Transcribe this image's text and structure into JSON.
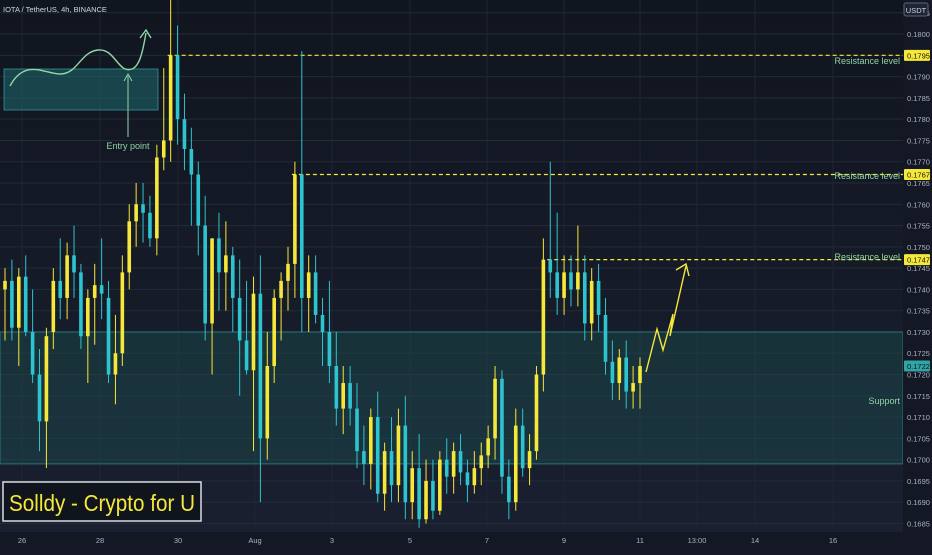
{
  "symbol_title": "IOTA / TetherUS, 4h, BINANCE",
  "currency": "USDT",
  "watermark": "Solldy - Crypto for U",
  "annotations": {
    "entry_point": "Entry point",
    "support": "Support",
    "resistance_label": "Resistance level"
  },
  "colors": {
    "background": "#141824",
    "bull": "#f5e83a",
    "bear": "#2ec4cf",
    "resistance_line": "#f5e83a",
    "support_zone": "#1d5b5a",
    "entry_box": "#1f6a70",
    "text": "#cfd8dc",
    "label_green": "#8fd6a8",
    "projection": "#f5e83a"
  },
  "chart_data": {
    "type": "candlestick",
    "price_axis": {
      "min": 0.1683,
      "max": 0.1808,
      "ticks": [
        "0.1685",
        "0.1690",
        "0.1695",
        "0.1700",
        "0.1705",
        "0.1710",
        "0.1715",
        "0.1720",
        "0.1725",
        "0.1730",
        "0.1735",
        "0.1740",
        "0.1745",
        "0.1750",
        "0.1755",
        "0.1760",
        "0.1765",
        "0.1770",
        "0.1775",
        "0.1780",
        "0.1785",
        "0.1790",
        "0.1795",
        "0.1800",
        "0.1805"
      ],
      "highlighted": [
        {
          "label": "0.1795",
          "value": 0.1795,
          "style": "resistance"
        },
        {
          "label": "0.1767",
          "value": 0.1767,
          "style": "resistance"
        },
        {
          "label": "0.1747",
          "value": 0.1747,
          "style": "resistance"
        },
        {
          "label": "0.1722",
          "value": 0.1722,
          "style": "current"
        }
      ]
    },
    "time_axis": {
      "ticks": [
        "26",
        "28",
        "30",
        "Aug",
        "3",
        "5",
        "7",
        "9",
        "11",
        "13:00",
        "14",
        "16"
      ]
    },
    "resistance_levels": [
      0.1795,
      0.1767,
      0.1747
    ],
    "support_zone": [
      0.1699,
      0.173
    ],
    "current_price": 0.1722,
    "candles": [
      {
        "o": 0.174,
        "h": 0.1745,
        "l": 0.1728,
        "c": 0.1742
      },
      {
        "o": 0.1742,
        "h": 0.1747,
        "l": 0.1728,
        "c": 0.1731
      },
      {
        "o": 0.1731,
        "h": 0.1745,
        "l": 0.1722,
        "c": 0.1743
      },
      {
        "o": 0.1743,
        "h": 0.1748,
        "l": 0.1729,
        "c": 0.173
      },
      {
        "o": 0.173,
        "h": 0.174,
        "l": 0.1718,
        "c": 0.172
      },
      {
        "o": 0.172,
        "h": 0.1726,
        "l": 0.1702,
        "c": 0.1709
      },
      {
        "o": 0.1709,
        "h": 0.1731,
        "l": 0.1698,
        "c": 0.1729
      },
      {
        "o": 0.173,
        "h": 0.1745,
        "l": 0.1726,
        "c": 0.1742
      },
      {
        "o": 0.1742,
        "h": 0.1752,
        "l": 0.1733,
        "c": 0.1738
      },
      {
        "o": 0.1738,
        "h": 0.1751,
        "l": 0.1733,
        "c": 0.1748
      },
      {
        "o": 0.1748,
        "h": 0.1755,
        "l": 0.1738,
        "c": 0.1744
      },
      {
        "o": 0.1744,
        "h": 0.1746,
        "l": 0.1726,
        "c": 0.1729
      },
      {
        "o": 0.1729,
        "h": 0.174,
        "l": 0.1718,
        "c": 0.1738
      },
      {
        "o": 0.1738,
        "h": 0.1746,
        "l": 0.1727,
        "c": 0.1741
      },
      {
        "o": 0.1741,
        "h": 0.1752,
        "l": 0.1733,
        "c": 0.1739
      },
      {
        "o": 0.1738,
        "h": 0.1742,
        "l": 0.1718,
        "c": 0.172
      },
      {
        "o": 0.172,
        "h": 0.1734,
        "l": 0.1713,
        "c": 0.1725
      },
      {
        "o": 0.1725,
        "h": 0.1748,
        "l": 0.1722,
        "c": 0.1744
      },
      {
        "o": 0.1744,
        "h": 0.176,
        "l": 0.174,
        "c": 0.1756
      },
      {
        "o": 0.1756,
        "h": 0.1765,
        "l": 0.175,
        "c": 0.176
      },
      {
        "o": 0.176,
        "h": 0.1765,
        "l": 0.1751,
        "c": 0.1758
      },
      {
        "o": 0.1758,
        "h": 0.1762,
        "l": 0.175,
        "c": 0.1752
      },
      {
        "o": 0.1752,
        "h": 0.1774,
        "l": 0.1748,
        "c": 0.1771
      },
      {
        "o": 0.1771,
        "h": 0.1792,
        "l": 0.1768,
        "c": 0.1775
      },
      {
        "o": 0.1775,
        "h": 0.181,
        "l": 0.177,
        "c": 0.1795
      },
      {
        "o": 0.1795,
        "h": 0.1802,
        "l": 0.1774,
        "c": 0.178
      },
      {
        "o": 0.178,
        "h": 0.1786,
        "l": 0.1768,
        "c": 0.1773
      },
      {
        "o": 0.1773,
        "h": 0.1778,
        "l": 0.1755,
        "c": 0.1767
      },
      {
        "o": 0.1767,
        "h": 0.177,
        "l": 0.1748,
        "c": 0.1755
      },
      {
        "o": 0.1755,
        "h": 0.1762,
        "l": 0.1728,
        "c": 0.1732
      },
      {
        "o": 0.1732,
        "h": 0.1752,
        "l": 0.172,
        "c": 0.1752
      },
      {
        "o": 0.1752,
        "h": 0.1758,
        "l": 0.1735,
        "c": 0.1744
      },
      {
        "o": 0.1744,
        "h": 0.1756,
        "l": 0.1735,
        "c": 0.1748
      },
      {
        "o": 0.1748,
        "h": 0.175,
        "l": 0.173,
        "c": 0.1738
      },
      {
        "o": 0.1738,
        "h": 0.1747,
        "l": 0.1715,
        "c": 0.1728
      },
      {
        "o": 0.1728,
        "h": 0.1742,
        "l": 0.172,
        "c": 0.1721
      },
      {
        "o": 0.1721,
        "h": 0.1743,
        "l": 0.1702,
        "c": 0.1739
      },
      {
        "o": 0.1739,
        "h": 0.1748,
        "l": 0.169,
        "c": 0.1705
      },
      {
        "o": 0.1705,
        "h": 0.173,
        "l": 0.17,
        "c": 0.1722
      },
      {
        "o": 0.1722,
        "h": 0.174,
        "l": 0.1718,
        "c": 0.1738
      },
      {
        "o": 0.1738,
        "h": 0.1744,
        "l": 0.1728,
        "c": 0.1742
      },
      {
        "o": 0.1742,
        "h": 0.175,
        "l": 0.1735,
        "c": 0.1746
      },
      {
        "o": 0.1746,
        "h": 0.177,
        "l": 0.1738,
        "c": 0.1767
      },
      {
        "o": 0.1767,
        "h": 0.1796,
        "l": 0.173,
        "c": 0.1738
      },
      {
        "o": 0.1738,
        "h": 0.1748,
        "l": 0.173,
        "c": 0.1744
      },
      {
        "o": 0.1744,
        "h": 0.1748,
        "l": 0.1732,
        "c": 0.1734
      },
      {
        "o": 0.1734,
        "h": 0.1738,
        "l": 0.1722,
        "c": 0.173
      },
      {
        "o": 0.173,
        "h": 0.1742,
        "l": 0.1718,
        "c": 0.1722
      },
      {
        "o": 0.1722,
        "h": 0.173,
        "l": 0.1708,
        "c": 0.1712
      },
      {
        "o": 0.1712,
        "h": 0.1722,
        "l": 0.1706,
        "c": 0.1718
      },
      {
        "o": 0.1718,
        "h": 0.1722,
        "l": 0.1708,
        "c": 0.1712
      },
      {
        "o": 0.1712,
        "h": 0.1718,
        "l": 0.1698,
        "c": 0.1702
      },
      {
        "o": 0.1702,
        "h": 0.1708,
        "l": 0.1694,
        "c": 0.1699
      },
      {
        "o": 0.1699,
        "h": 0.1712,
        "l": 0.1693,
        "c": 0.171
      },
      {
        "o": 0.171,
        "h": 0.1716,
        "l": 0.169,
        "c": 0.1692
      },
      {
        "o": 0.1692,
        "h": 0.1704,
        "l": 0.1688,
        "c": 0.1702
      },
      {
        "o": 0.1702,
        "h": 0.171,
        "l": 0.169,
        "c": 0.1694
      },
      {
        "o": 0.1694,
        "h": 0.1712,
        "l": 0.169,
        "c": 0.1708
      },
      {
        "o": 0.1708,
        "h": 0.1715,
        "l": 0.1686,
        "c": 0.169
      },
      {
        "o": 0.169,
        "h": 0.1702,
        "l": 0.1686,
        "c": 0.1698
      },
      {
        "o": 0.1698,
        "h": 0.1706,
        "l": 0.1684,
        "c": 0.1686
      },
      {
        "o": 0.1686,
        "h": 0.17,
        "l": 0.1685,
        "c": 0.1695
      },
      {
        "o": 0.1695,
        "h": 0.17,
        "l": 0.1686,
        "c": 0.1688
      },
      {
        "o": 0.1688,
        "h": 0.1702,
        "l": 0.1687,
        "c": 0.17
      },
      {
        "o": 0.17,
        "h": 0.1705,
        "l": 0.1692,
        "c": 0.1696
      },
      {
        "o": 0.1696,
        "h": 0.1704,
        "l": 0.1692,
        "c": 0.1702
      },
      {
        "o": 0.1702,
        "h": 0.1706,
        "l": 0.1694,
        "c": 0.1697
      },
      {
        "o": 0.1697,
        "h": 0.17,
        "l": 0.169,
        "c": 0.1694
      },
      {
        "o": 0.1694,
        "h": 0.1702,
        "l": 0.1692,
        "c": 0.1698
      },
      {
        "o": 0.1698,
        "h": 0.1704,
        "l": 0.1694,
        "c": 0.1701
      },
      {
        "o": 0.1701,
        "h": 0.1708,
        "l": 0.1698,
        "c": 0.1705
      },
      {
        "o": 0.1705,
        "h": 0.1722,
        "l": 0.17,
        "c": 0.1719
      },
      {
        "o": 0.1719,
        "h": 0.1721,
        "l": 0.1692,
        "c": 0.1696
      },
      {
        "o": 0.1696,
        "h": 0.17,
        "l": 0.1686,
        "c": 0.169
      },
      {
        "o": 0.169,
        "h": 0.1712,
        "l": 0.1688,
        "c": 0.1708
      },
      {
        "o": 0.1708,
        "h": 0.1712,
        "l": 0.1696,
        "c": 0.1698
      },
      {
        "o": 0.1698,
        "h": 0.1706,
        "l": 0.1694,
        "c": 0.1702
      },
      {
        "o": 0.1702,
        "h": 0.1722,
        "l": 0.17,
        "c": 0.172
      },
      {
        "o": 0.172,
        "h": 0.1752,
        "l": 0.1716,
        "c": 0.1747
      },
      {
        "o": 0.1747,
        "h": 0.177,
        "l": 0.1738,
        "c": 0.1744
      },
      {
        "o": 0.1744,
        "h": 0.1758,
        "l": 0.1734,
        "c": 0.1738
      },
      {
        "o": 0.1738,
        "h": 0.1748,
        "l": 0.1734,
        "c": 0.1744
      },
      {
        "o": 0.1744,
        "h": 0.1748,
        "l": 0.1736,
        "c": 0.174
      },
      {
        "o": 0.174,
        "h": 0.1755,
        "l": 0.1736,
        "c": 0.1744
      },
      {
        "o": 0.1744,
        "h": 0.1748,
        "l": 0.1728,
        "c": 0.1732
      },
      {
        "o": 0.1732,
        "h": 0.1745,
        "l": 0.1728,
        "c": 0.1742
      },
      {
        "o": 0.1742,
        "h": 0.1746,
        "l": 0.173,
        "c": 0.1734
      },
      {
        "o": 0.1734,
        "h": 0.1738,
        "l": 0.172,
        "c": 0.1723
      },
      {
        "o": 0.1723,
        "h": 0.1728,
        "l": 0.1714,
        "c": 0.1718
      },
      {
        "o": 0.1718,
        "h": 0.1726,
        "l": 0.1714,
        "c": 0.1724
      },
      {
        "o": 0.1724,
        "h": 0.1728,
        "l": 0.1712,
        "c": 0.1716
      },
      {
        "o": 0.1716,
        "h": 0.1722,
        "l": 0.1712,
        "c": 0.1718
      },
      {
        "o": 0.1718,
        "h": 0.1724,
        "l": 0.1712,
        "c": 0.1722
      }
    ]
  }
}
